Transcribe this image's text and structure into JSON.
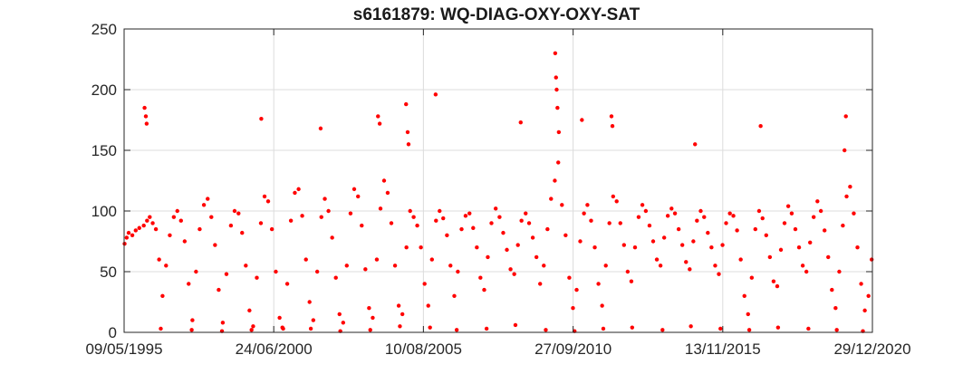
{
  "chart_data": {
    "type": "scatter",
    "title": "s6161879: WQ-DIAG-OXY-OXY-SAT",
    "xlabel": "",
    "ylabel": "",
    "x_axis_type": "date",
    "xlim": [
      "1995-05-09",
      "2020-12-29"
    ],
    "ylim": [
      0,
      250
    ],
    "x_ticks": [
      "1995-05-09",
      "2000-06-24",
      "2005-08-10",
      "2010-09-27",
      "2015-11-13",
      "2020-12-29"
    ],
    "x_tick_labels": [
      "09/05/1995",
      "24/06/2000",
      "10/08/2005",
      "27/09/2010",
      "13/11/2015",
      "29/12/2020"
    ],
    "y_ticks": [
      0,
      50,
      100,
      150,
      200,
      250
    ],
    "y_tick_labels": [
      "0",
      "50",
      "100",
      "150",
      "200",
      "250"
    ],
    "grid": true,
    "marker_color": "#ff0000",
    "series": [
      {
        "x": [
          "1995-05-15",
          "1995-06-10",
          "1995-07-05",
          "1995-08-20",
          "1995-10-01",
          "1995-11-15",
          "1996-01-10",
          "1996-02-20",
          "1996-03-25",
          "1996-05-01",
          "1996-06-10",
          "1996-07-20",
          "1996-09-01",
          "1996-10-15",
          "1996-12-01",
          "1997-01-20",
          "1997-03-05",
          "1997-04-20",
          "1997-06-05",
          "1997-07-25",
          "1997-09-10",
          "1997-10-25",
          "1997-12-10",
          "1998-02-01",
          "1998-03-20",
          "1998-05-05",
          "1998-06-20",
          "1998-08-05",
          "1998-09-25",
          "1998-11-10",
          "1999-01-05",
          "1999-02-20",
          "1999-04-10",
          "1999-05-25",
          "1999-07-10",
          "1999-08-25",
          "1999-10-10",
          "1999-11-25",
          "2000-01-15",
          "2000-03-01",
          "2000-04-15",
          "2000-06-01",
          "2000-07-20",
          "2000-09-05",
          "2000-10-20",
          "2000-12-10",
          "2001-01-25",
          "2001-03-15",
          "2001-05-01",
          "2001-06-15",
          "2001-08-01",
          "2001-09-15",
          "2001-11-01",
          "2001-12-20",
          "2002-02-10",
          "2002-03-25",
          "2002-05-10",
          "2002-06-25",
          "2002-08-10",
          "2002-09-25",
          "2002-11-10",
          "2002-12-25",
          "2003-02-10",
          "2003-03-28",
          "2003-05-15",
          "2003-06-30",
          "2003-08-15",
          "2003-09-30",
          "2003-11-15",
          "2004-01-05",
          "2004-02-20",
          "2004-04-05",
          "2004-05-20",
          "2004-07-05",
          "2004-08-20",
          "2004-10-05",
          "2004-11-20",
          "2005-01-10",
          "2005-02-25",
          "2005-04-10",
          "2005-05-25",
          "2005-07-10",
          "2005-08-25",
          "2005-10-10",
          "2005-11-25",
          "2006-01-15",
          "2006-03-01",
          "2006-04-15",
          "2006-06-01",
          "2006-07-15",
          "2006-09-01",
          "2006-10-15",
          "2006-12-01",
          "2007-01-20",
          "2007-03-10",
          "2007-04-25",
          "2007-06-10",
          "2007-07-25",
          "2007-09-10",
          "2007-10-25",
          "2007-12-10",
          "2008-02-01",
          "2008-03-20",
          "2008-05-05",
          "2008-06-20",
          "2008-08-05",
          "2008-09-20",
          "2008-11-05",
          "2008-12-20",
          "2009-02-10",
          "2009-03-25",
          "2009-05-10",
          "2009-06-25",
          "2009-08-10",
          "2009-09-25",
          "2009-11-10",
          "2009-12-25",
          "2010-02-10",
          "2010-03-25",
          "2010-05-10",
          "2010-06-25",
          "2010-08-10",
          "2010-09-25",
          "2010-11-10",
          "2010-12-25",
          "2011-02-10",
          "2011-03-25",
          "2011-05-10",
          "2011-06-25",
          "2011-08-10",
          "2011-09-25",
          "2011-11-10",
          "2011-12-25",
          "2012-02-10",
          "2012-03-25",
          "2012-05-10",
          "2012-06-25",
          "2012-08-10",
          "2012-09-25",
          "2012-11-10",
          "2012-12-25",
          "2013-02-10",
          "2013-03-25",
          "2013-05-10",
          "2013-06-25",
          "2013-08-10",
          "2013-09-25",
          "2013-11-10",
          "2013-12-25",
          "2014-02-10",
          "2014-03-25",
          "2014-05-10",
          "2014-06-25",
          "2014-08-10",
          "2014-09-25",
          "2014-11-10",
          "2014-12-25",
          "2015-02-10",
          "2015-03-25",
          "2015-05-10",
          "2015-06-25",
          "2015-08-10",
          "2015-09-25",
          "2015-11-10",
          "2015-12-25",
          "2016-02-10",
          "2016-03-25",
          "2016-05-10",
          "2016-06-25",
          "2016-08-10",
          "2016-09-25",
          "2016-11-10",
          "2016-12-25",
          "2017-02-10",
          "2017-03-25",
          "2017-05-10",
          "2017-06-25",
          "2017-08-10",
          "2017-09-25",
          "2017-11-10",
          "2017-12-25",
          "2018-02-10",
          "2018-03-25",
          "2018-05-10",
          "2018-06-25",
          "2018-08-10",
          "2018-09-25",
          "2018-11-10",
          "2018-12-25",
          "2019-02-10",
          "2019-03-25",
          "2019-05-10",
          "2019-06-25",
          "2019-08-10",
          "2019-09-25",
          "2019-11-10",
          "2019-12-25",
          "2020-02-10",
          "2020-03-25",
          "2020-05-10",
          "2020-06-25",
          "2020-08-10",
          "2020-09-25",
          "2020-11-10",
          "2020-12-20",
          "1996-01-20",
          "1996-02-05",
          "1996-02-15",
          "2000-01-20",
          "2002-02-01",
          "2004-01-20",
          "2004-02-10",
          "2005-01-05",
          "2005-01-25",
          "2005-02-05",
          "2006-01-10",
          "2008-12-10",
          "2010-02-15",
          "2010-02-25",
          "2010-03-05",
          "2010-03-15",
          "2010-04-01",
          "2011-01-15",
          "2012-01-20",
          "2012-02-01",
          "2014-12-01",
          "2017-03-01",
          "2020-01-15",
          "2020-02-01",
          "1996-08-10",
          "1997-09-01",
          "1998-09-15",
          "1999-09-20",
          "2000-10-10",
          "2001-10-01",
          "2002-10-05",
          "2003-10-15",
          "2004-10-20",
          "2005-11-01",
          "2006-10-01",
          "2007-10-10",
          "2008-10-05",
          "2009-10-20",
          "2010-10-15",
          "2011-10-10",
          "2012-10-05",
          "2013-10-20",
          "2014-10-10",
          "2015-10-15",
          "2016-10-10",
          "2017-10-05",
          "2018-10-20",
          "2019-10-10",
          "2020-09-01"
        ],
        "y": [
          73,
          78,
          82,
          80,
          84,
          86,
          88,
          92,
          95,
          90,
          85,
          60,
          30,
          55,
          80,
          95,
          100,
          92,
          75,
          40,
          10,
          50,
          85,
          105,
          110,
          95,
          72,
          35,
          8,
          48,
          88,
          100,
          98,
          82,
          55,
          18,
          5,
          45,
          90,
          112,
          108,
          85,
          50,
          12,
          3,
          40,
          92,
          115,
          118,
          96,
          60,
          25,
          10,
          50,
          95,
          110,
          100,
          78,
          45,
          15,
          8,
          55,
          98,
          118,
          112,
          88,
          52,
          20,
          12,
          60,
          102,
          125,
          115,
          90,
          55,
          22,
          15,
          70,
          100,
          95,
          88,
          70,
          40,
          22,
          60,
          92,
          100,
          94,
          80,
          55,
          30,
          50,
          85,
          96,
          98,
          86,
          70,
          45,
          35,
          62,
          90,
          102,
          95,
          82,
          68,
          52,
          48,
          72,
          92,
          98,
          90,
          78,
          62,
          40,
          55,
          85,
          110,
          125,
          140,
          105,
          80,
          45,
          20,
          35,
          75,
          98,
          105,
          92,
          70,
          40,
          22,
          55,
          90,
          112,
          108,
          90,
          72,
          50,
          42,
          70,
          95,
          105,
          100,
          88,
          75,
          60,
          55,
          78,
          96,
          102,
          98,
          85,
          72,
          58,
          52,
          75,
          92,
          100,
          95,
          82,
          70,
          55,
          48,
          72,
          90,
          98,
          96,
          84,
          60,
          30,
          15,
          45,
          85,
          100,
          94,
          80,
          62,
          42,
          38,
          68,
          90,
          104,
          98,
          85,
          70,
          55,
          50,
          74,
          95,
          108,
          100,
          84,
          62,
          35,
          20,
          50,
          88,
          112,
          120,
          98,
          70,
          40,
          18,
          30,
          60,
          185,
          178,
          172,
          176,
          168,
          178,
          172,
          188,
          165,
          155,
          196,
          173,
          230,
          210,
          200,
          185,
          165,
          175,
          178,
          170,
          155,
          170,
          150,
          178,
          3,
          2,
          1,
          2,
          4,
          3,
          1,
          2,
          5,
          4,
          2,
          3,
          6,
          2,
          1,
          3,
          4,
          2,
          5,
          3,
          2,
          4,
          3,
          2,
          1
        ]
      }
    ]
  }
}
